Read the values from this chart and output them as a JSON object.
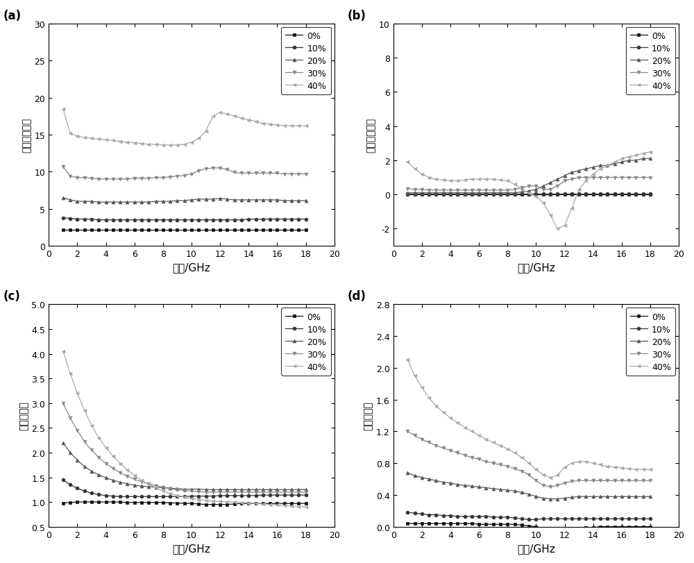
{
  "freq": [
    1,
    1.5,
    2,
    2.5,
    3,
    3.5,
    4,
    4.5,
    5,
    5.5,
    6,
    6.5,
    7,
    7.5,
    8,
    8.5,
    9,
    9.5,
    10,
    10.5,
    11,
    11.5,
    12,
    12.5,
    13,
    13.5,
    14,
    14.5,
    15,
    15.5,
    16,
    16.5,
    17,
    17.5,
    18
  ],
  "labels": [
    "0%",
    "10%",
    "20%",
    "30%",
    "40%"
  ],
  "colors": [
    "#111111",
    "#333333",
    "#555555",
    "#888888",
    "#aaaaaa"
  ],
  "markers": [
    "s",
    "o",
    "^",
    "v",
    "<"
  ],
  "panel_labels": [
    "(a)",
    "(b)",
    "(c)",
    "(d)"
  ],
  "xlabel": "频率/GHz",
  "ylabels": [
    "介电常数实部",
    "介电常数虚部",
    "磁导率实部",
    "磁导率虚部"
  ],
  "a_ylim": [
    0,
    30
  ],
  "a_yticks": [
    0,
    5,
    10,
    15,
    20,
    25,
    30
  ],
  "b_ylim": [
    -3,
    10
  ],
  "b_yticks": [
    -2,
    0,
    2,
    4,
    6,
    8,
    10
  ],
  "c_ylim": [
    0.5,
    5.0
  ],
  "c_yticks": [
    0.5,
    1.0,
    1.5,
    2.0,
    2.5,
    3.0,
    3.5,
    4.0,
    4.5,
    5.0
  ],
  "d_ylim": [
    0,
    2.8
  ],
  "d_yticks": [
    0.0,
    0.4,
    0.8,
    1.2,
    1.6,
    2.0,
    2.4,
    2.8
  ],
  "xlim": [
    0,
    20
  ],
  "xticks": [
    0,
    2,
    4,
    6,
    8,
    10,
    12,
    14,
    16,
    18,
    20
  ],
  "a_data": {
    "p0": [
      2.2,
      2.2,
      2.2,
      2.2,
      2.2,
      2.2,
      2.2,
      2.2,
      2.2,
      2.2,
      2.2,
      2.2,
      2.2,
      2.2,
      2.2,
      2.2,
      2.2,
      2.2,
      2.2,
      2.2,
      2.2,
      2.2,
      2.2,
      2.2,
      2.2,
      2.2,
      2.2,
      2.2,
      2.2,
      2.2,
      2.2,
      2.2,
      2.2,
      2.2,
      2.2
    ],
    "p10": [
      3.8,
      3.7,
      3.6,
      3.6,
      3.6,
      3.5,
      3.5,
      3.5,
      3.5,
      3.5,
      3.5,
      3.5,
      3.5,
      3.5,
      3.5,
      3.5,
      3.5,
      3.5,
      3.5,
      3.5,
      3.5,
      3.5,
      3.5,
      3.5,
      3.5,
      3.5,
      3.6,
      3.6,
      3.6,
      3.6,
      3.6,
      3.6,
      3.6,
      3.6,
      3.6
    ],
    "p20": [
      6.5,
      6.2,
      6.0,
      6.0,
      6.0,
      5.9,
      5.9,
      5.9,
      5.9,
      5.9,
      5.9,
      5.9,
      5.9,
      6.0,
      6.0,
      6.0,
      6.1,
      6.1,
      6.2,
      6.3,
      6.3,
      6.3,
      6.4,
      6.3,
      6.2,
      6.2,
      6.2,
      6.2,
      6.2,
      6.2,
      6.2,
      6.1,
      6.1,
      6.1,
      6.1
    ],
    "p30": [
      10.7,
      9.4,
      9.2,
      9.2,
      9.1,
      9.0,
      9.0,
      9.0,
      9.0,
      9.0,
      9.1,
      9.1,
      9.1,
      9.2,
      9.2,
      9.3,
      9.4,
      9.5,
      9.7,
      10.1,
      10.4,
      10.5,
      10.5,
      10.3,
      9.9,
      9.8,
      9.8,
      9.8,
      9.8,
      9.8,
      9.8,
      9.7,
      9.7,
      9.7,
      9.7
    ],
    "p40": [
      18.5,
      15.2,
      14.8,
      14.6,
      14.5,
      14.4,
      14.3,
      14.2,
      14.1,
      14.0,
      13.9,
      13.8,
      13.7,
      13.7,
      13.6,
      13.6,
      13.6,
      13.7,
      14.0,
      14.5,
      15.5,
      17.5,
      18.0,
      17.8,
      17.5,
      17.2,
      17.0,
      16.8,
      16.5,
      16.4,
      16.3,
      16.2,
      16.2,
      16.2,
      16.2
    ]
  },
  "b_data": {
    "p0": [
      0.0,
      0.0,
      0.0,
      0.0,
      0.0,
      0.0,
      0.0,
      0.0,
      0.0,
      0.0,
      0.0,
      0.0,
      0.0,
      0.0,
      0.0,
      0.0,
      0.0,
      0.0,
      0.0,
      0.0,
      0.0,
      0.0,
      0.0,
      0.0,
      0.0,
      0.0,
      0.0,
      0.0,
      0.0,
      0.0,
      0.0,
      0.0,
      0.0,
      0.0,
      0.0
    ],
    "p10": [
      0.05,
      0.05,
      0.05,
      0.05,
      0.05,
      0.05,
      0.05,
      0.05,
      0.05,
      0.05,
      0.05,
      0.05,
      0.05,
      0.05,
      0.05,
      0.05,
      0.05,
      0.05,
      0.05,
      0.05,
      0.05,
      0.05,
      0.05,
      0.05,
      0.05,
      0.05,
      0.05,
      0.05,
      0.05,
      0.05,
      0.05,
      0.05,
      0.05,
      0.05,
      0.05
    ],
    "p20": [
      0.1,
      0.1,
      0.1,
      0.1,
      0.1,
      0.1,
      0.1,
      0.1,
      0.1,
      0.1,
      0.1,
      0.1,
      0.1,
      0.1,
      0.1,
      0.1,
      0.15,
      0.2,
      0.3,
      0.5,
      0.7,
      0.9,
      1.1,
      1.3,
      1.4,
      1.5,
      1.6,
      1.7,
      1.7,
      1.8,
      1.9,
      2.0,
      2.0,
      2.1,
      2.1
    ],
    "p30": [
      0.35,
      0.3,
      0.28,
      0.26,
      0.25,
      0.25,
      0.25,
      0.25,
      0.25,
      0.25,
      0.25,
      0.25,
      0.25,
      0.25,
      0.25,
      0.3,
      0.4,
      0.5,
      0.5,
      0.3,
      0.3,
      0.5,
      0.8,
      0.9,
      1.0,
      1.0,
      1.0,
      1.0,
      1.0,
      1.0,
      1.0,
      1.0,
      1.0,
      1.0,
      1.0
    ],
    "p40": [
      1.9,
      1.5,
      1.2,
      1.0,
      0.9,
      0.85,
      0.8,
      0.8,
      0.85,
      0.9,
      0.9,
      0.9,
      0.9,
      0.85,
      0.8,
      0.6,
      0.3,
      0.1,
      -0.1,
      -0.5,
      -1.2,
      -2.0,
      -1.8,
      -0.8,
      0.3,
      0.8,
      1.2,
      1.5,
      1.7,
      1.9,
      2.1,
      2.2,
      2.3,
      2.4,
      2.5
    ]
  },
  "c_data": {
    "p0": [
      0.98,
      0.99,
      1.0,
      1.0,
      1.0,
      1.0,
      1.0,
      1.0,
      1.0,
      0.99,
      0.99,
      0.99,
      0.99,
      0.99,
      0.99,
      0.98,
      0.98,
      0.97,
      0.97,
      0.96,
      0.95,
      0.95,
      0.95,
      0.95,
      0.96,
      0.97,
      0.97,
      0.97,
      0.97,
      0.97,
      0.97,
      0.97,
      0.97,
      0.97,
      0.97
    ],
    "p10": [
      1.45,
      1.35,
      1.28,
      1.22,
      1.18,
      1.15,
      1.13,
      1.12,
      1.11,
      1.11,
      1.11,
      1.11,
      1.11,
      1.11,
      1.11,
      1.11,
      1.11,
      1.11,
      1.12,
      1.12,
      1.12,
      1.12,
      1.13,
      1.13,
      1.13,
      1.13,
      1.13,
      1.13,
      1.14,
      1.14,
      1.14,
      1.14,
      1.14,
      1.14,
      1.14
    ],
    "p20": [
      2.2,
      2.0,
      1.85,
      1.72,
      1.62,
      1.55,
      1.49,
      1.44,
      1.4,
      1.37,
      1.34,
      1.32,
      1.31,
      1.3,
      1.29,
      1.28,
      1.27,
      1.26,
      1.26,
      1.26,
      1.25,
      1.25,
      1.25,
      1.25,
      1.25,
      1.25,
      1.25,
      1.25,
      1.25,
      1.25,
      1.25,
      1.25,
      1.25,
      1.25,
      1.25
    ],
    "p30": [
      3.0,
      2.7,
      2.45,
      2.22,
      2.05,
      1.9,
      1.78,
      1.68,
      1.59,
      1.52,
      1.46,
      1.41,
      1.37,
      1.33,
      1.3,
      1.27,
      1.25,
      1.23,
      1.22,
      1.21,
      1.2,
      1.2,
      1.2,
      1.2,
      1.2,
      1.2,
      1.2,
      1.2,
      1.2,
      1.2,
      1.2,
      1.2,
      1.2,
      1.2,
      1.2
    ],
    "p40": [
      4.05,
      3.6,
      3.2,
      2.85,
      2.55,
      2.3,
      2.1,
      1.93,
      1.78,
      1.65,
      1.54,
      1.44,
      1.36,
      1.29,
      1.22,
      1.17,
      1.13,
      1.1,
      1.07,
      1.05,
      1.03,
      1.02,
      1.01,
      1.0,
      1.0,
      0.99,
      0.98,
      0.97,
      0.96,
      0.95,
      0.94,
      0.93,
      0.92,
      0.91,
      0.9
    ]
  },
  "d_data": {
    "p0": [
      0.04,
      0.04,
      0.04,
      0.04,
      0.04,
      0.04,
      0.04,
      0.04,
      0.04,
      0.04,
      0.03,
      0.03,
      0.03,
      0.03,
      0.03,
      0.03,
      0.02,
      0.01,
      0.0,
      -0.02,
      -0.05,
      -0.04,
      -0.03,
      -0.02,
      -0.02,
      -0.01,
      -0.01,
      0.0,
      0.0,
      0.0,
      0.0,
      0.0,
      0.0,
      0.0,
      0.0
    ],
    "p10": [
      0.18,
      0.17,
      0.16,
      0.15,
      0.15,
      0.14,
      0.14,
      0.13,
      0.13,
      0.13,
      0.13,
      0.13,
      0.12,
      0.12,
      0.12,
      0.11,
      0.1,
      0.09,
      0.09,
      0.1,
      0.1,
      0.1,
      0.1,
      0.1,
      0.1,
      0.1,
      0.1,
      0.1,
      0.1,
      0.1,
      0.1,
      0.1,
      0.1,
      0.1,
      0.1
    ],
    "p20": [
      0.68,
      0.64,
      0.62,
      0.6,
      0.58,
      0.56,
      0.55,
      0.53,
      0.52,
      0.51,
      0.5,
      0.49,
      0.48,
      0.47,
      0.46,
      0.45,
      0.43,
      0.41,
      0.38,
      0.36,
      0.35,
      0.35,
      0.36,
      0.37,
      0.38,
      0.38,
      0.38,
      0.38,
      0.38,
      0.38,
      0.38,
      0.38,
      0.38,
      0.38,
      0.38
    ],
    "p30": [
      1.2,
      1.15,
      1.1,
      1.06,
      1.02,
      0.99,
      0.96,
      0.93,
      0.9,
      0.87,
      0.85,
      0.82,
      0.8,
      0.78,
      0.76,
      0.73,
      0.7,
      0.65,
      0.58,
      0.52,
      0.5,
      0.52,
      0.55,
      0.57,
      0.58,
      0.58,
      0.58,
      0.58,
      0.58,
      0.58,
      0.58,
      0.58,
      0.58,
      0.58,
      0.58
    ],
    "p40": [
      2.1,
      1.9,
      1.75,
      1.62,
      1.52,
      1.44,
      1.37,
      1.31,
      1.25,
      1.2,
      1.15,
      1.1,
      1.06,
      1.02,
      0.98,
      0.93,
      0.87,
      0.8,
      0.72,
      0.65,
      0.62,
      0.65,
      0.75,
      0.8,
      0.82,
      0.82,
      0.8,
      0.78,
      0.76,
      0.75,
      0.74,
      0.73,
      0.72,
      0.72,
      0.72
    ]
  }
}
